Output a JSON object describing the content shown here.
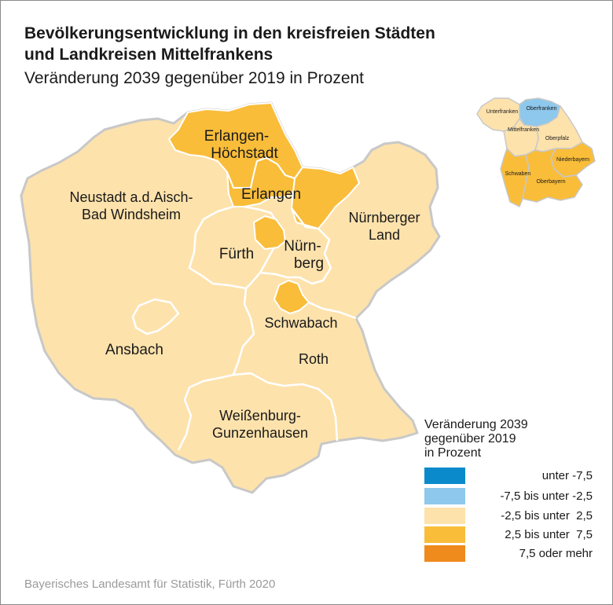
{
  "header": {
    "title_line1": "Bevölkerungsentwicklung in den kreisfreien Städten",
    "title_line2": "und Landkreisen Mittelfrankens",
    "subtitle": "Veränderung 2039 gegenüber 2019 in Prozent"
  },
  "colors": {
    "below_minus_7_5": "#0a8acb",
    "minus_7_5_to_minus_2_5": "#8ec8ec",
    "minus_2_5_to_2_5": "#fde2ac",
    "plus_2_5_to_7_5": "#f9bd3a",
    "plus_7_5_or_more": "#ef8a1c",
    "boundary": "#ffffff",
    "outer_boundary": "#c8c8c8",
    "source_text": "#9a9a9a"
  },
  "map": {
    "regions": [
      {
        "line1": "Erlangen-",
        "line2": "Höchstadt",
        "class": "2,5 bis unter 7,5"
      },
      {
        "line1": "Erlangen",
        "class": "2,5 bis unter 7,5"
      },
      {
        "line1": "Neustadt a.d.Aisch-",
        "line2": "Bad Windsheim",
        "class": "-2,5 bis unter 2,5"
      },
      {
        "line1": "Nürnberger",
        "line2": "Land",
        "class": "-2,5 bis unter 2,5"
      },
      {
        "line1": "Fürth",
        "class": "-2,5 bis unter 2,5"
      },
      {
        "line1": "Nürn-",
        "line2": "berg",
        "class": "-2,5 bis unter 2,5"
      },
      {
        "line1": "Schwabach",
        "class": "2,5 bis unter 7,5"
      },
      {
        "line1": "Ansbach",
        "class": "-2,5 bis unter 2,5"
      },
      {
        "line1": "Roth",
        "class": "-2,5 bis unter 2,5"
      },
      {
        "line1": "Weißenburg-",
        "line2": "Gunzenhausen",
        "class": "-2,5 bis unter 2,5"
      }
    ]
  },
  "inset": {
    "regions": [
      {
        "label": "Unterfranken",
        "class": "-2,5 bis unter 2,5"
      },
      {
        "label": "Oberfranken",
        "class": "-7,5 bis unter -2,5"
      },
      {
        "label": "Mittelfranken",
        "class": "-2,5 bis unter 2,5"
      },
      {
        "label": "Oberpfalz",
        "class": "-2,5 bis unter 2,5"
      },
      {
        "label": "Niederbayern",
        "class": "2,5 bis unter 7,5"
      },
      {
        "label": "Schwaben",
        "class": "2,5 bis unter 7,5"
      },
      {
        "label": "Oberbayern",
        "class": "2,5 bis unter 7,5"
      }
    ]
  },
  "legend": {
    "title_line1": "Veränderung 2039",
    "title_line2": "gegenüber 2019",
    "title_line3": "in Prozent",
    "items": [
      {
        "label": "unter -7,5",
        "color": "#0a8acb"
      },
      {
        "label": "-7,5 bis unter -2,5",
        "color": "#8ec8ec"
      },
      {
        "label": "-2,5 bis unter  2,5",
        "color": "#fde2ac"
      },
      {
        "label": "2,5 bis unter  7,5",
        "color": "#f9bd3a"
      },
      {
        "label": "7,5 oder mehr",
        "color": "#ef8a1c"
      }
    ]
  },
  "source": "Bayerisches Landesamt für Statistik, Fürth 2020"
}
